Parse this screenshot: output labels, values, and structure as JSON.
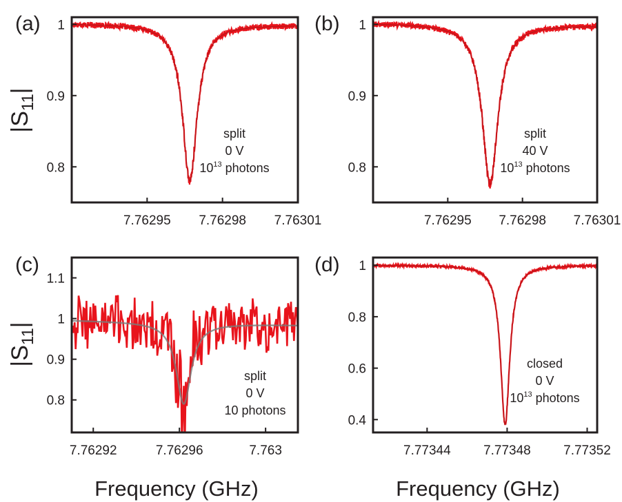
{
  "figure": {
    "y_axis_label_main": "|S",
    "y_axis_label_sub": "11",
    "y_axis_label_end": "|",
    "x_axis_label": "Frequency (GHz)",
    "colors": {
      "data": "#e8141c",
      "fit": "#7a7a7a",
      "axes": "#231f20"
    }
  },
  "chart_data": [
    {
      "panel": "(a)",
      "type": "line",
      "xlim": [
        7.76292,
        7.76301
      ],
      "ylim": [
        0.75,
        1.01
      ],
      "xticks": [
        7.76295,
        7.76298,
        7.76301
      ],
      "xtick_labels": [
        "7.76295",
        "7.76298",
        "7.76301"
      ],
      "yticks": [
        0.8,
        0.9,
        1.0
      ],
      "ytick_labels": [
        "0.8",
        "0.9",
        "1"
      ],
      "resonance": {
        "f0": 7.762967,
        "depth": 0.22,
        "halfwidth": 3.5e-06,
        "baseline": 1.0,
        "slope": -0.002,
        "noise": 0.004
      },
      "annotation": {
        "lines": [
          "split",
          "0 V"
        ],
        "photons_base": "10",
        "photons_exp": "13",
        "photons_word": " photons"
      }
    },
    {
      "panel": "(b)",
      "type": "line",
      "xlim": [
        7.76292,
        7.76301
      ],
      "ylim": [
        0.75,
        1.01
      ],
      "xticks": [
        7.76295,
        7.76298,
        7.76301
      ],
      "xtick_labels": [
        "7.76295",
        "7.76298",
        "7.76301"
      ],
      "yticks": [
        0.8,
        0.9,
        1.0
      ],
      "ytick_labels": [
        "0.8",
        "0.9",
        "1"
      ],
      "resonance": {
        "f0": 7.762967,
        "depth": 0.225,
        "halfwidth": 3.8e-06,
        "baseline": 1.0,
        "slope": -0.003,
        "noise": 0.004
      },
      "annotation": {
        "lines": [
          "split",
          "40 V"
        ],
        "photons_base": "10",
        "photons_exp": "13",
        "photons_word": " photons"
      }
    },
    {
      "panel": "(c)",
      "type": "line",
      "xlim": [
        7.76291,
        7.763015
      ],
      "ylim": [
        0.72,
        1.15
      ],
      "xticks": [
        7.76292,
        7.76296,
        7.763
      ],
      "xtick_labels": [
        "7.76292",
        "7.76296",
        "7.763"
      ],
      "yticks": [
        0.8,
        0.9,
        1.0,
        1.1
      ],
      "ytick_labels": [
        "0.8",
        "0.9",
        "1",
        "1.1"
      ],
      "resonance": {
        "f0": 7.762962,
        "depth": 0.2,
        "halfwidth": 3.8e-06,
        "baseline": 0.99,
        "slope": -0.01,
        "noise": 0.07
      },
      "fit": {
        "f0": 7.762962,
        "depth": 0.2,
        "halfwidth": 4.2e-06,
        "baseline": 0.99,
        "slope": -0.012
      },
      "annotation": {
        "lines": [
          "split",
          "0 V",
          "10 photons"
        ]
      }
    },
    {
      "panel": "(d)",
      "type": "line",
      "xlim": [
        7.773413,
        7.773525
      ],
      "ylim": [
        0.35,
        1.03
      ],
      "xticks": [
        7.77344,
        7.77348,
        7.77352
      ],
      "xtick_labels": [
        "7.77344",
        "7.77348",
        "7.77352"
      ],
      "yticks": [
        0.4,
        0.6,
        0.8,
        1.0
      ],
      "ytick_labels": [
        "0.4",
        "0.6",
        "0.8",
        "1"
      ],
      "resonance": {
        "f0": 7.773479,
        "depth": 0.62,
        "halfwidth": 2.8e-06,
        "baseline": 1.0,
        "slope": 0.0,
        "noise": 0.005
      },
      "annotation": {
        "lines": [
          "closed",
          "0 V"
        ],
        "photons_base": "10",
        "photons_exp": "13",
        "photons_word": " photons"
      }
    }
  ]
}
